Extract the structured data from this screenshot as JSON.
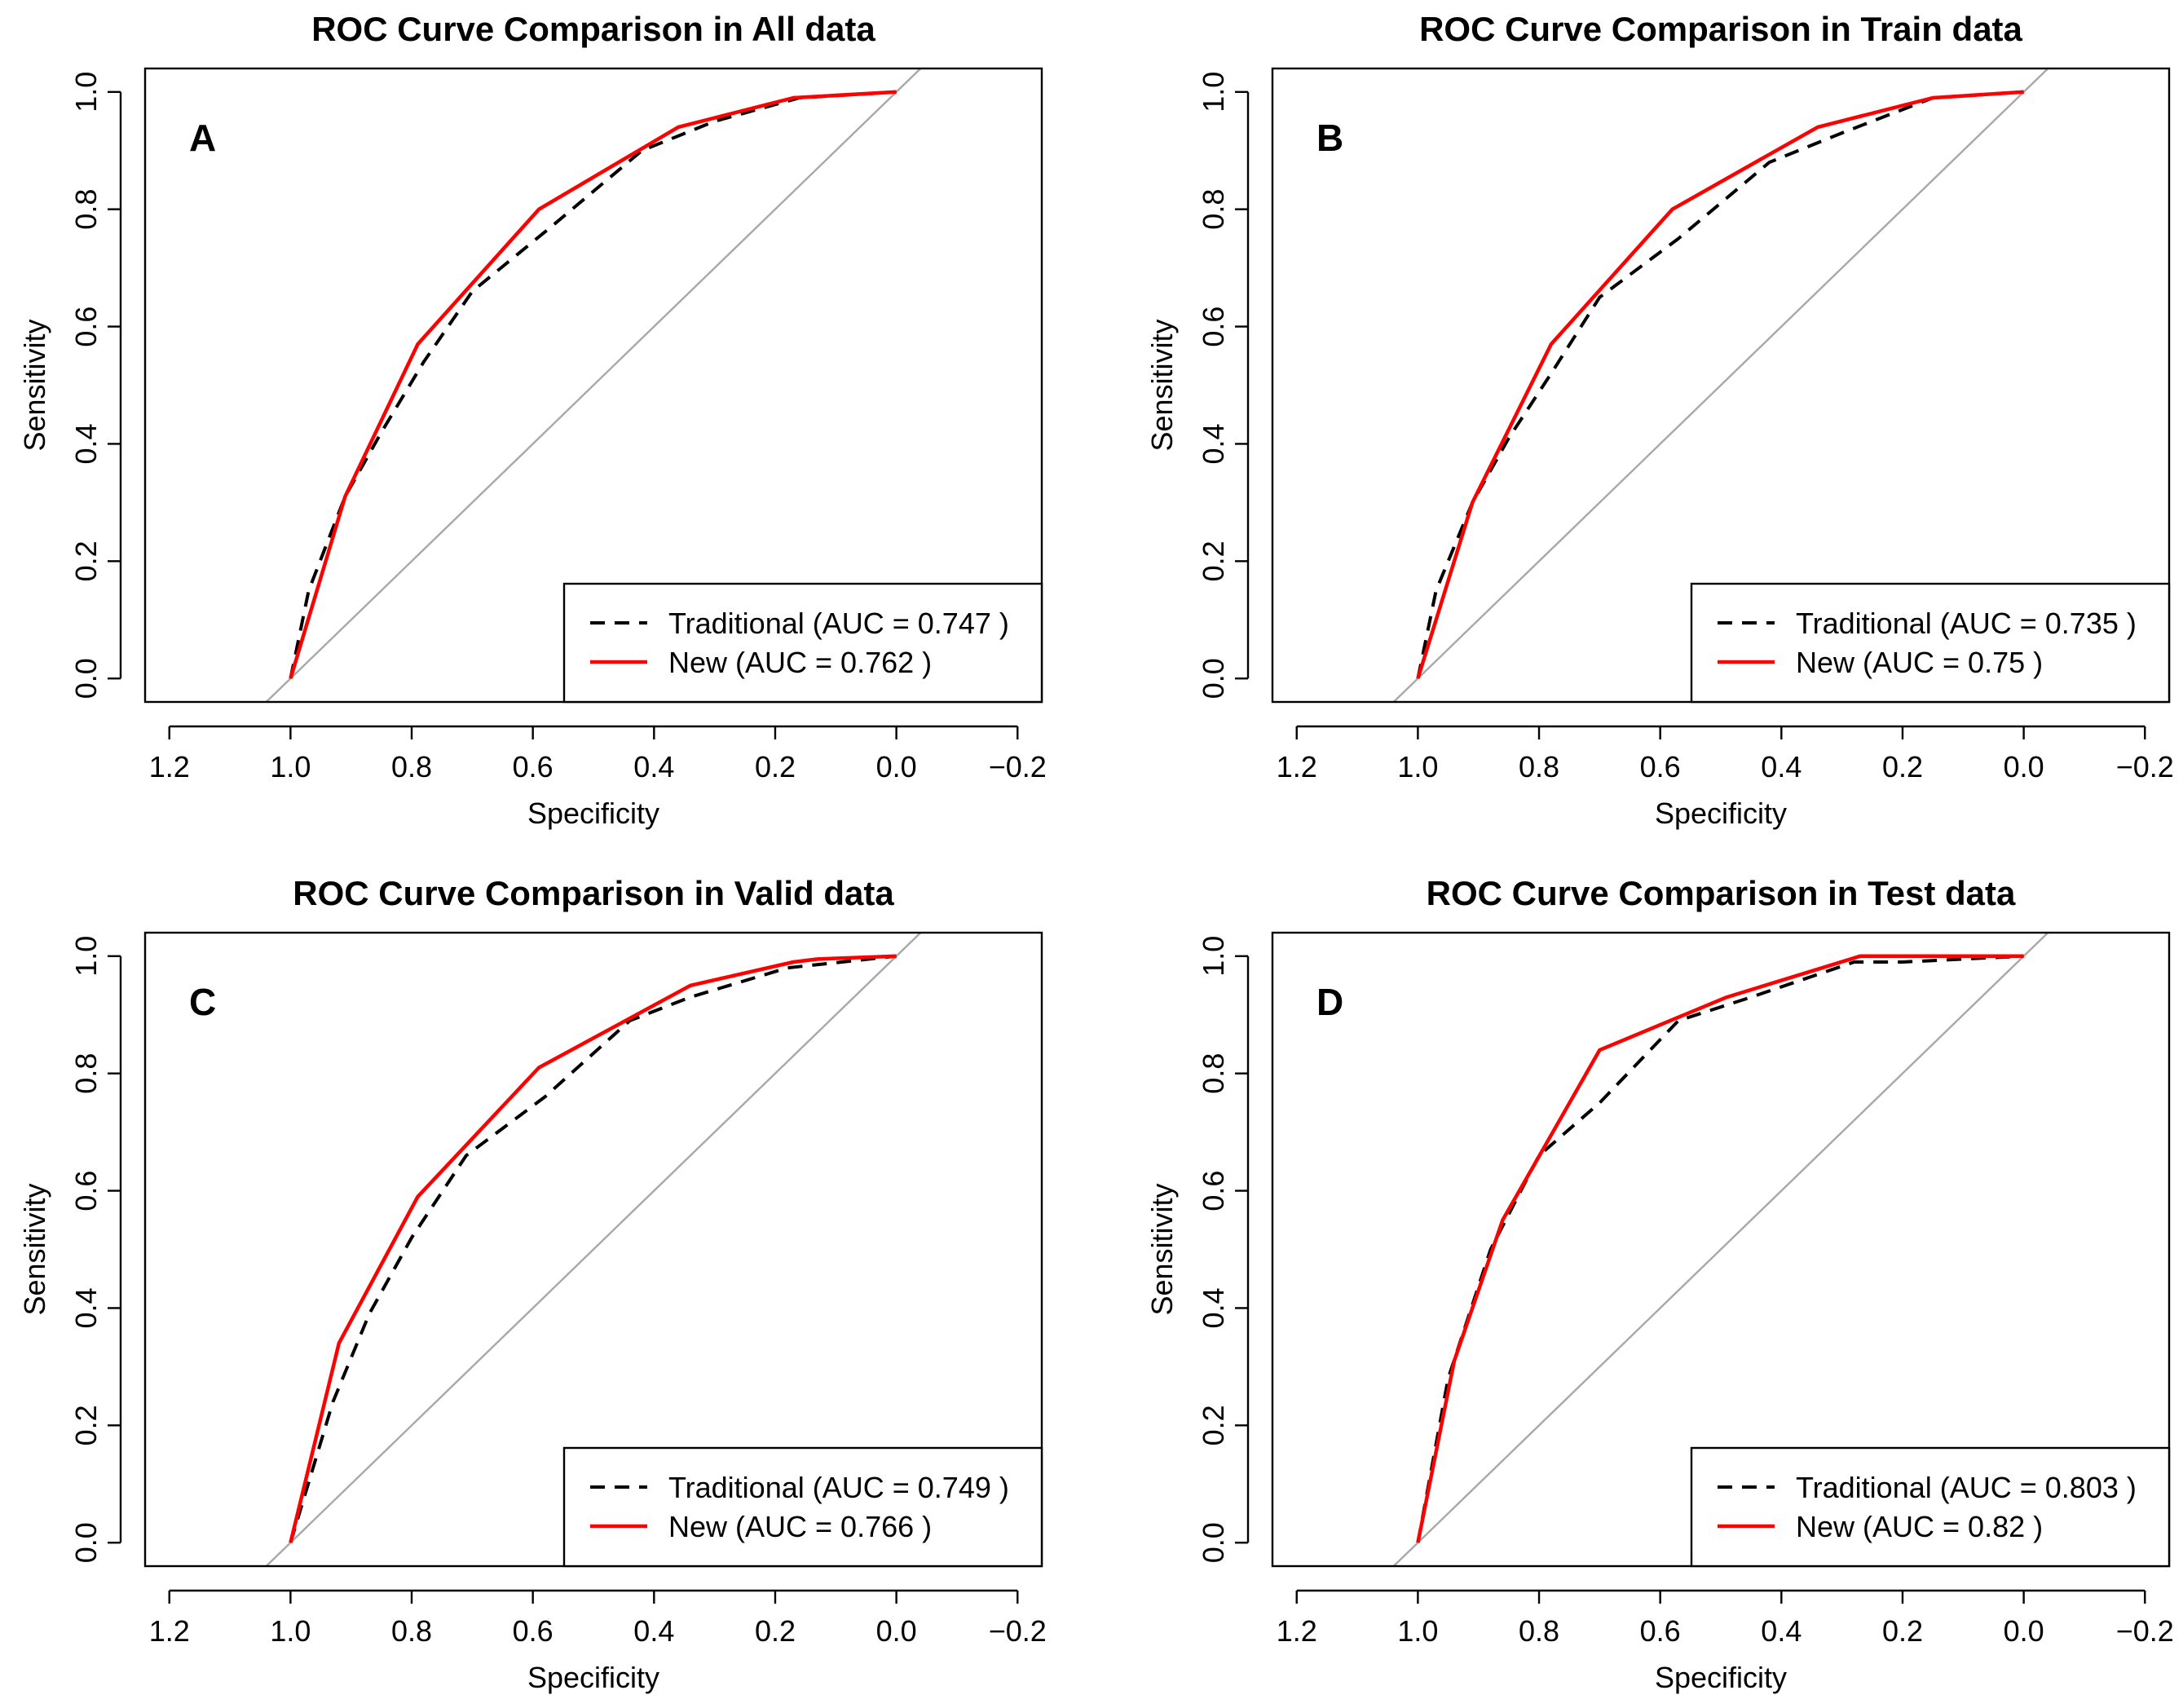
{
  "chart_data": [
    {
      "type": "line",
      "panel_label": "A",
      "title": "ROC Curve Comparison in All data",
      "xlabel": "Specificity",
      "ylabel": "Sensitivity",
      "xlim": [
        1.2,
        -0.2
      ],
      "ylim": [
        0,
        1
      ],
      "xticks": [
        1.2,
        1.0,
        0.8,
        0.6,
        0.4,
        0.2,
        0.0,
        -0.2
      ],
      "xtick_labels": [
        "1.2",
        "1.0",
        "0.8",
        "0.6",
        "0.4",
        "0.2",
        "0.0",
        "−0.2"
      ],
      "yticks": [
        0,
        0.2,
        0.4,
        0.6,
        0.8,
        1.0
      ],
      "ytick_labels": [
        "0.0",
        "0.2",
        "0.4",
        "0.6",
        "0.8",
        "1.0"
      ],
      "reference_line": {
        "color": "#a8a8a8"
      },
      "legend_position": "bottom-right",
      "series": [
        {
          "name": "Traditional (AUC = 0.747 )",
          "color": "#000000",
          "style": "dashed",
          "x": [
            1.0,
            0.97,
            0.91,
            0.85,
            0.78,
            0.7,
            0.57,
            0.42,
            0.3,
            0.16,
            0.0
          ],
          "y": [
            0.0,
            0.15,
            0.31,
            0.42,
            0.54,
            0.66,
            0.77,
            0.9,
            0.95,
            0.99,
            1.0
          ]
        },
        {
          "name": "New (AUC = 0.762 )",
          "color": "#ff0000",
          "style": "solid",
          "x": [
            1.0,
            0.91,
            0.79,
            0.59,
            0.36,
            0.17,
            0.0
          ],
          "y": [
            0.0,
            0.31,
            0.57,
            0.8,
            0.94,
            0.99,
            1.0
          ]
        }
      ]
    },
    {
      "type": "line",
      "panel_label": "B",
      "title": "ROC Curve Comparison in Train data",
      "xlabel": "Specificity",
      "ylabel": "Sensitivity",
      "xlim": [
        1.2,
        -0.2
      ],
      "ylim": [
        0,
        1
      ],
      "xticks": [
        1.2,
        1.0,
        0.8,
        0.6,
        0.4,
        0.2,
        0.0,
        -0.2
      ],
      "xtick_labels": [
        "1.2",
        "1.0",
        "0.8",
        "0.6",
        "0.4",
        "0.2",
        "0.0",
        "−0.2"
      ],
      "yticks": [
        0,
        0.2,
        0.4,
        0.6,
        0.8,
        1.0
      ],
      "ytick_labels": [
        "0.0",
        "0.2",
        "0.4",
        "0.6",
        "0.8",
        "1.0"
      ],
      "reference_line": {
        "color": "#a8a8a8"
      },
      "legend_position": "bottom-right",
      "series": [
        {
          "name": "Traditional (AUC = 0.735 )",
          "color": "#000000",
          "style": "dashed",
          "x": [
            1.0,
            0.97,
            0.91,
            0.85,
            0.78,
            0.7,
            0.57,
            0.42,
            0.3,
            0.15,
            0.0
          ],
          "y": [
            0.0,
            0.15,
            0.3,
            0.41,
            0.52,
            0.65,
            0.75,
            0.88,
            0.93,
            0.99,
            1.0
          ]
        },
        {
          "name": "New (AUC = 0.75 )",
          "color": "#ff0000",
          "style": "solid",
          "x": [
            1.0,
            0.91,
            0.78,
            0.58,
            0.34,
            0.15,
            0.0
          ],
          "y": [
            0.0,
            0.3,
            0.57,
            0.8,
            0.94,
            0.99,
            1.0
          ]
        }
      ]
    },
    {
      "type": "line",
      "panel_label": "C",
      "title": "ROC Curve Comparison in Valid data",
      "xlabel": "Specificity",
      "ylabel": "Sensitivity",
      "xlim": [
        1.2,
        -0.2
      ],
      "ylim": [
        0,
        1
      ],
      "xticks": [
        1.2,
        1.0,
        0.8,
        0.6,
        0.4,
        0.2,
        0.0,
        -0.2
      ],
      "xtick_labels": [
        "1.2",
        "1.0",
        "0.8",
        "0.6",
        "0.4",
        "0.2",
        "0.0",
        "−0.2"
      ],
      "yticks": [
        0,
        0.2,
        0.4,
        0.6,
        0.8,
        1.0
      ],
      "ytick_labels": [
        "0.0",
        "0.2",
        "0.4",
        "0.6",
        "0.8",
        "1.0"
      ],
      "reference_line": {
        "color": "#a8a8a8"
      },
      "legend_position": "bottom-right",
      "series": [
        {
          "name": "Traditional (AUC = 0.749 )",
          "color": "#000000",
          "style": "dashed",
          "x": [
            1.0,
            0.93,
            0.87,
            0.8,
            0.71,
            0.58,
            0.44,
            0.34,
            0.18,
            0.0
          ],
          "y": [
            0.0,
            0.24,
            0.39,
            0.52,
            0.66,
            0.76,
            0.89,
            0.93,
            0.98,
            1.0
          ]
        },
        {
          "name": "New (AUC = 0.766 )",
          "color": "#ff0000",
          "style": "solid",
          "x": [
            1.0,
            0.92,
            0.79,
            0.59,
            0.34,
            0.17,
            0.13,
            0.0
          ],
          "y": [
            0.0,
            0.34,
            0.59,
            0.81,
            0.95,
            0.99,
            0.995,
            1.0
          ]
        }
      ]
    },
    {
      "type": "line",
      "panel_label": "D",
      "title": "ROC Curve Comparison in Test data",
      "xlabel": "Specificity",
      "ylabel": "Sensitivity",
      "xlim": [
        1.2,
        -0.2
      ],
      "ylim": [
        0,
        1
      ],
      "xticks": [
        1.2,
        1.0,
        0.8,
        0.6,
        0.4,
        0.2,
        0.0,
        -0.2
      ],
      "xtick_labels": [
        "1.2",
        "1.0",
        "0.8",
        "0.6",
        "0.4",
        "0.2",
        "0.0",
        "−0.2"
      ],
      "yticks": [
        0,
        0.2,
        0.4,
        0.6,
        0.8,
        1.0
      ],
      "ytick_labels": [
        "0.0",
        "0.2",
        "0.4",
        "0.6",
        "0.8",
        "1.0"
      ],
      "reference_line": {
        "color": "#a8a8a8"
      },
      "legend_position": "bottom-right",
      "series": [
        {
          "name": "Traditional (AUC = 0.803 )",
          "color": "#000000",
          "style": "dashed",
          "x": [
            1.0,
            0.95,
            0.88,
            0.8,
            0.7,
            0.57,
            0.45,
            0.28,
            0.2,
            0.0
          ],
          "y": [
            0.0,
            0.28,
            0.5,
            0.66,
            0.75,
            0.89,
            0.93,
            0.99,
            0.99,
            1.0
          ]
        },
        {
          "name": "New (AUC = 0.82 )",
          "color": "#ff0000",
          "style": "solid",
          "x": [
            1.0,
            0.94,
            0.86,
            0.7,
            0.49,
            0.27,
            0.0
          ],
          "y": [
            0.0,
            0.31,
            0.55,
            0.84,
            0.93,
            1.0,
            1.0
          ]
        }
      ]
    }
  ]
}
